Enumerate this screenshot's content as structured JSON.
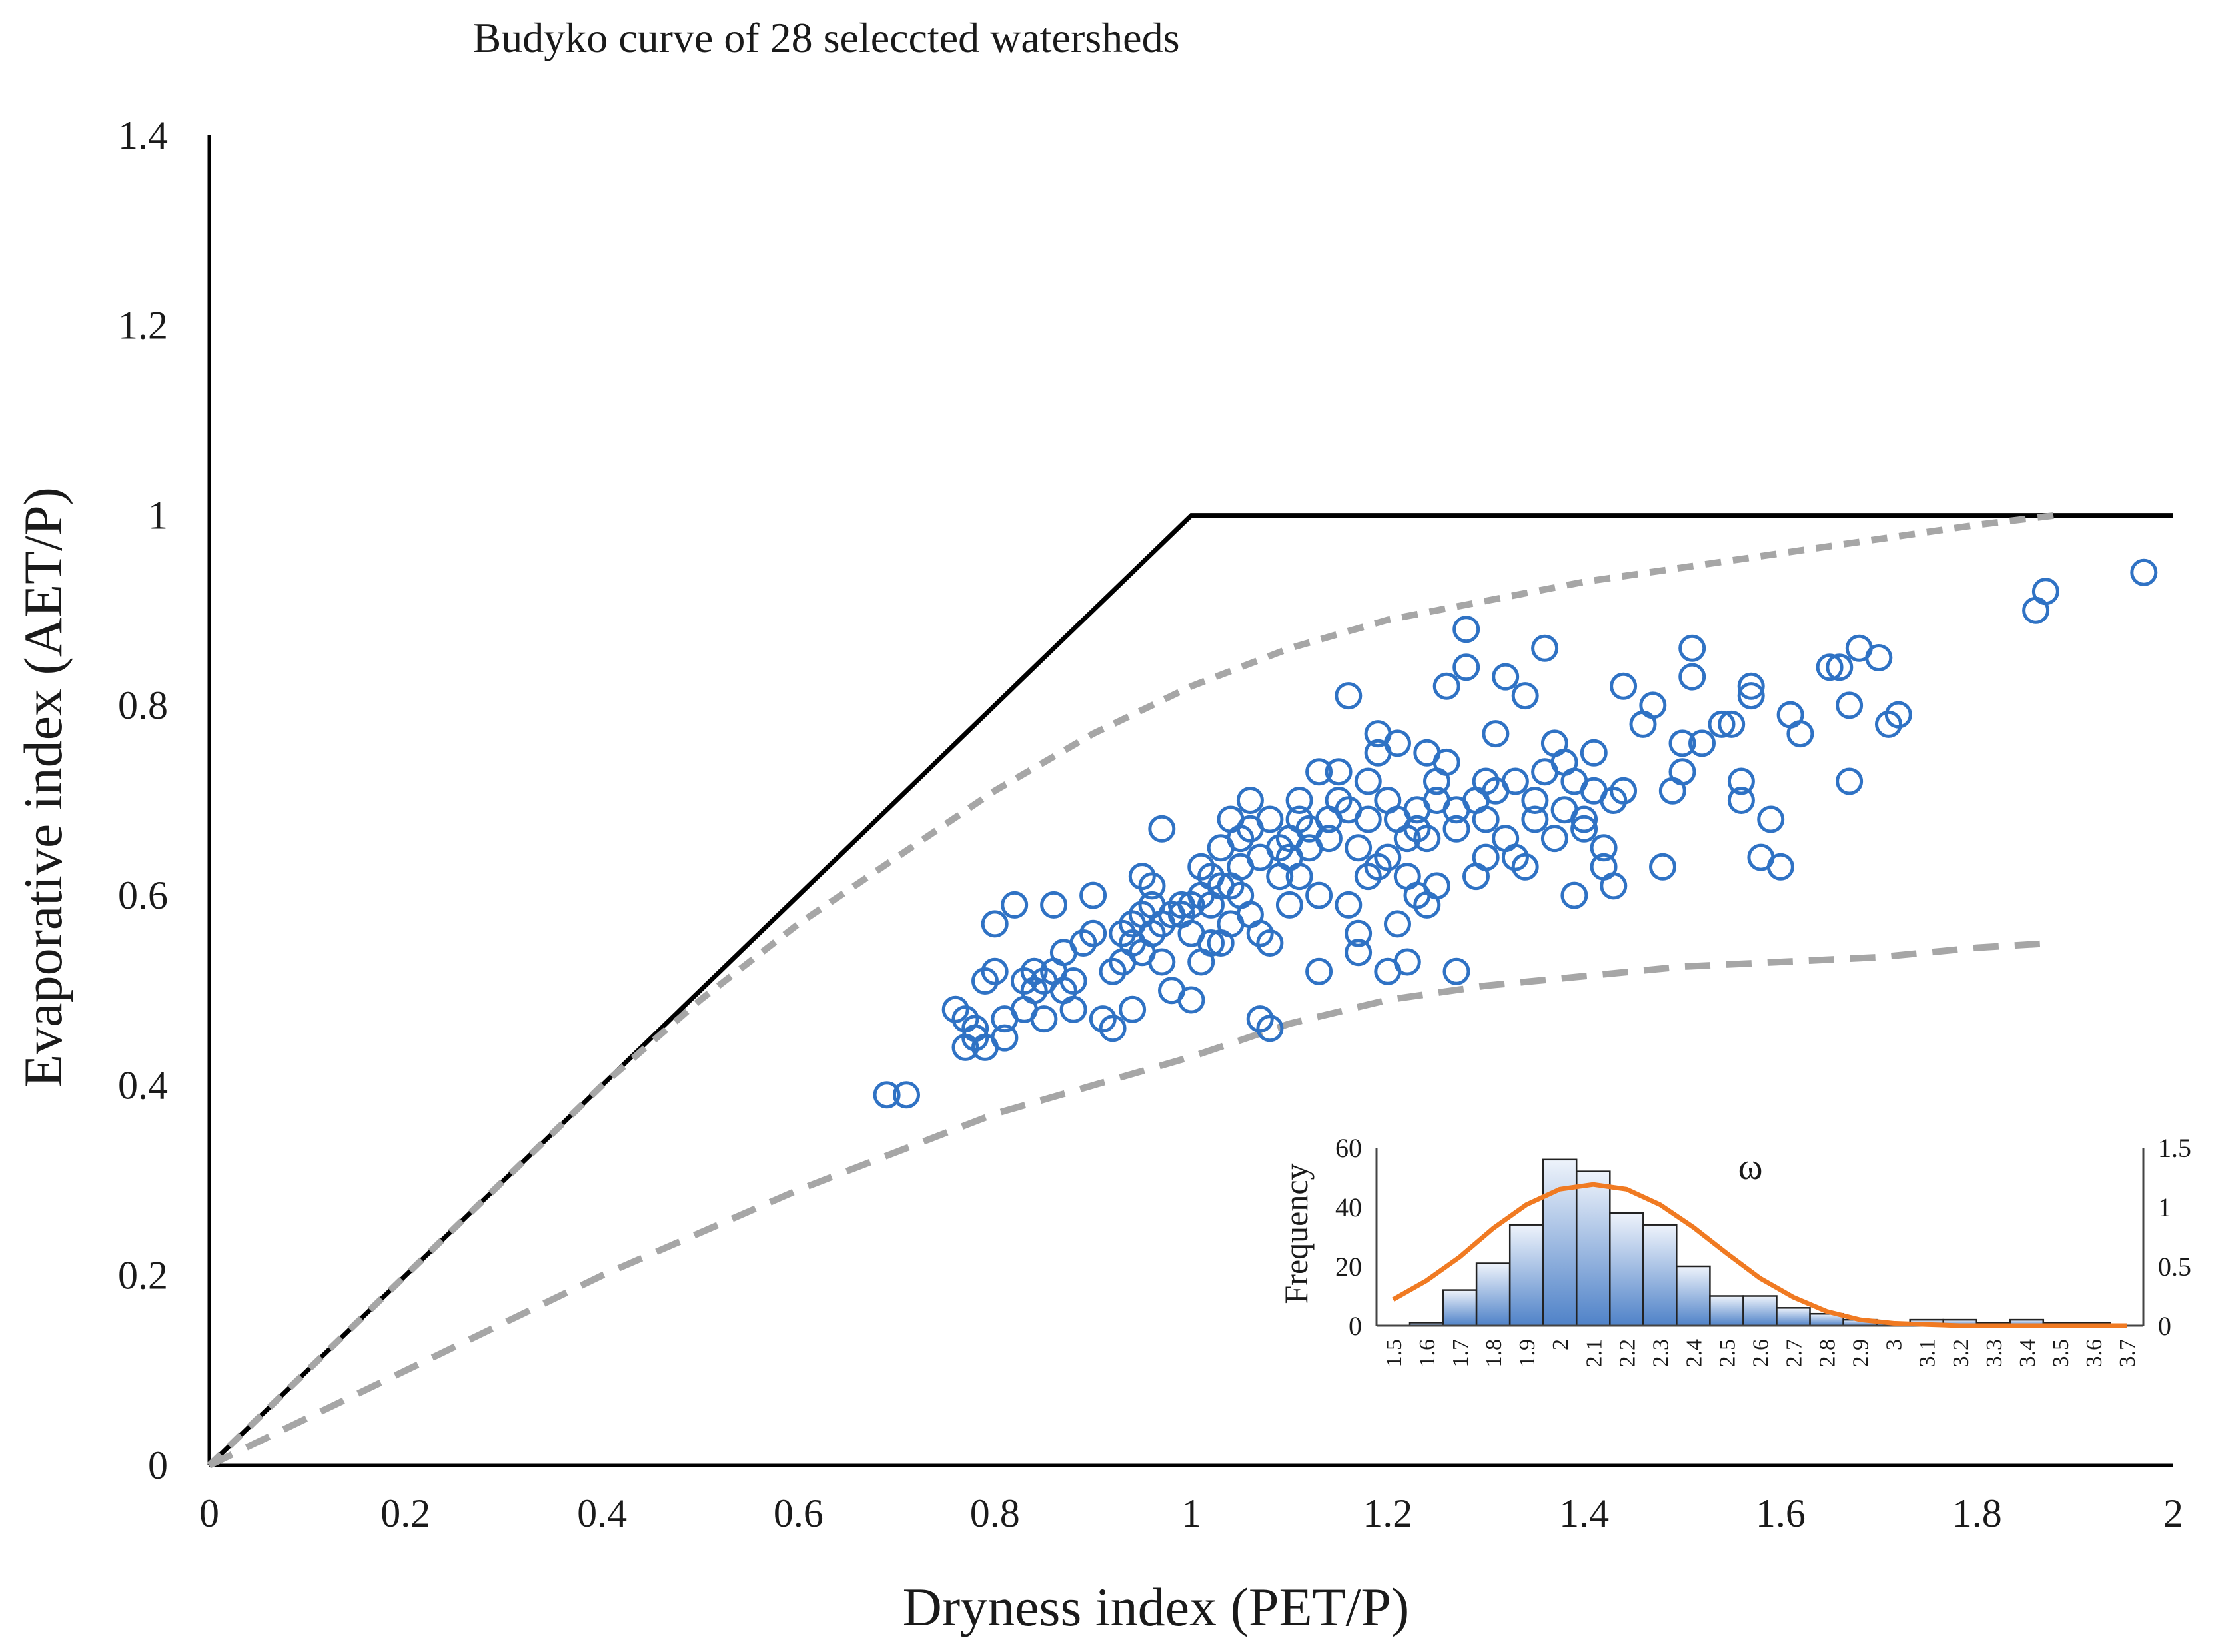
{
  "chart_data": [
    {
      "type": "scatter",
      "title": "Budyko curve of 28 seleccted watersheds",
      "xlabel": "Dryness index (PET/P)",
      "ylabel": "Evaporative index (AET/P)",
      "xlim": [
        0,
        2
      ],
      "ylim": [
        0,
        1.4
      ],
      "xticks": [
        "0",
        "0.2",
        "0.4",
        "0.6",
        "0.8",
        "1",
        "1.2",
        "1.4",
        "1.6",
        "1.8",
        "2"
      ],
      "yticks": [
        "0",
        "0.2",
        "0.4",
        "0.6",
        "0.8",
        "1",
        "1.2",
        "1.4"
      ],
      "grid": false,
      "legend": "none",
      "colors": {
        "points": "#2f72c4",
        "limit": "#000000",
        "curve": "#a6a6a6"
      },
      "limit_line": {
        "x": [
          0,
          1,
          2
        ],
        "y": [
          0,
          1,
          1
        ]
      },
      "curves": [
        {
          "name": "upper budyko curve",
          "x": [
            0,
            0.1,
            0.2,
            0.3,
            0.4,
            0.5,
            0.6,
            0.7,
            0.8,
            0.9,
            1.0,
            1.1,
            1.2,
            1.3,
            1.4,
            1.5,
            1.6,
            1.7,
            1.8,
            1.88
          ],
          "y": [
            0,
            0.1,
            0.2,
            0.3,
            0.4,
            0.49,
            0.57,
            0.64,
            0.71,
            0.77,
            0.82,
            0.86,
            0.89,
            0.91,
            0.93,
            0.945,
            0.96,
            0.975,
            0.99,
            1.0
          ]
        },
        {
          "name": "lower budyko curve",
          "x": [
            0,
            0.1,
            0.2,
            0.3,
            0.4,
            0.5,
            0.6,
            0.7,
            0.8,
            0.9,
            1.0,
            1.1,
            1.2,
            1.3,
            1.4,
            1.5,
            1.6,
            1.7,
            1.8,
            1.88
          ],
          "y": [
            0,
            0.05,
            0.1,
            0.15,
            0.2,
            0.245,
            0.29,
            0.33,
            0.37,
            0.4,
            0.43,
            0.465,
            0.49,
            0.505,
            0.515,
            0.525,
            0.53,
            0.535,
            0.545,
            0.55
          ]
        }
      ],
      "points": [
        [
          0.69,
          0.39
        ],
        [
          0.71,
          0.39
        ],
        [
          0.76,
          0.48
        ],
        [
          0.77,
          0.47
        ],
        [
          0.77,
          0.44
        ],
        [
          0.78,
          0.45
        ],
        [
          0.78,
          0.46
        ],
        [
          0.79,
          0.44
        ],
        [
          0.79,
          0.51
        ],
        [
          0.8,
          0.52
        ],
        [
          0.81,
          0.45
        ],
        [
          0.81,
          0.47
        ],
        [
          0.8,
          0.57
        ],
        [
          0.83,
          0.48
        ],
        [
          0.83,
          0.51
        ],
        [
          0.84,
          0.52
        ],
        [
          0.84,
          0.5
        ],
        [
          0.85,
          0.51
        ],
        [
          0.85,
          0.47
        ],
        [
          0.86,
          0.52
        ],
        [
          0.87,
          0.5
        ],
        [
          0.87,
          0.54
        ],
        [
          0.88,
          0.51
        ],
        [
          0.88,
          0.48
        ],
        [
          0.82,
          0.59
        ],
        [
          0.86,
          0.59
        ],
        [
          0.89,
          0.55
        ],
        [
          0.9,
          0.56
        ],
        [
          0.9,
          0.6
        ],
        [
          0.91,
          0.47
        ],
        [
          0.92,
          0.46
        ],
        [
          0.92,
          0.52
        ],
        [
          0.93,
          0.53
        ],
        [
          0.93,
          0.56
        ],
        [
          0.94,
          0.48
        ],
        [
          0.94,
          0.55
        ],
        [
          0.94,
          0.57
        ],
        [
          0.95,
          0.58
        ],
        [
          0.95,
          0.62
        ],
        [
          0.95,
          0.54
        ],
        [
          0.96,
          0.56
        ],
        [
          0.96,
          0.59
        ],
        [
          0.96,
          0.61
        ],
        [
          0.97,
          0.57
        ],
        [
          0.97,
          0.53
        ],
        [
          0.98,
          0.5
        ],
        [
          0.98,
          0.58
        ],
        [
          0.99,
          0.58
        ],
        [
          0.99,
          0.59
        ],
        [
          0.97,
          0.67
        ],
        [
          1.0,
          0.49
        ],
        [
          1.0,
          0.56
        ],
        [
          1.0,
          0.59
        ],
        [
          1.01,
          0.6
        ],
        [
          1.01,
          0.53
        ],
        [
          1.01,
          0.63
        ],
        [
          1.02,
          0.55
        ],
        [
          1.02,
          0.59
        ],
        [
          1.02,
          0.62
        ],
        [
          1.03,
          0.55
        ],
        [
          1.03,
          0.61
        ],
        [
          1.03,
          0.65
        ],
        [
          1.04,
          0.61
        ],
        [
          1.04,
          0.68
        ],
        [
          1.04,
          0.57
        ],
        [
          1.05,
          0.63
        ],
        [
          1.05,
          0.66
        ],
        [
          1.05,
          0.6
        ],
        [
          1.06,
          0.67
        ],
        [
          1.06,
          0.7
        ],
        [
          1.06,
          0.58
        ],
        [
          1.07,
          0.56
        ],
        [
          1.07,
          0.64
        ],
        [
          1.07,
          0.47
        ],
        [
          1.08,
          0.46
        ],
        [
          1.08,
          0.68
        ],
        [
          1.08,
          0.55
        ],
        [
          1.09,
          0.62
        ],
        [
          1.09,
          0.65
        ],
        [
          1.1,
          0.64
        ],
        [
          1.1,
          0.66
        ],
        [
          1.1,
          0.59
        ],
        [
          1.11,
          0.62
        ],
        [
          1.11,
          0.68
        ],
        [
          1.11,
          0.7
        ],
        [
          1.12,
          0.65
        ],
        [
          1.12,
          0.67
        ],
        [
          1.13,
          0.6
        ],
        [
          1.13,
          0.73
        ],
        [
          1.13,
          0.52
        ],
        [
          1.14,
          0.68
        ],
        [
          1.14,
          0.66
        ],
        [
          1.15,
          0.7
        ],
        [
          1.15,
          0.73
        ],
        [
          1.16,
          0.69
        ],
        [
          1.16,
          0.81
        ],
        [
          1.16,
          0.59
        ],
        [
          1.17,
          0.56
        ],
        [
          1.17,
          0.54
        ],
        [
          1.17,
          0.65
        ],
        [
          1.18,
          0.68
        ],
        [
          1.18,
          0.62
        ],
        [
          1.18,
          0.72
        ],
        [
          1.19,
          0.77
        ],
        [
          1.19,
          0.75
        ],
        [
          1.19,
          0.63
        ],
        [
          1.2,
          0.64
        ],
        [
          1.2,
          0.7
        ],
        [
          1.2,
          0.52
        ],
        [
          1.21,
          0.76
        ],
        [
          1.21,
          0.68
        ],
        [
          1.21,
          0.57
        ],
        [
          1.22,
          0.66
        ],
        [
          1.22,
          0.62
        ],
        [
          1.22,
          0.53
        ],
        [
          1.23,
          0.69
        ],
        [
          1.23,
          0.6
        ],
        [
          1.23,
          0.67
        ],
        [
          1.24,
          0.75
        ],
        [
          1.24,
          0.66
        ],
        [
          1.24,
          0.59
        ],
        [
          1.25,
          0.7
        ],
        [
          1.25,
          0.61
        ],
        [
          1.25,
          0.72
        ],
        [
          1.26,
          0.74
        ],
        [
          1.26,
          0.82
        ],
        [
          1.27,
          0.52
        ],
        [
          1.27,
          0.69
        ],
        [
          1.27,
          0.67
        ],
        [
          1.28,
          0.88
        ],
        [
          1.28,
          0.84
        ],
        [
          1.29,
          0.62
        ],
        [
          1.29,
          0.7
        ],
        [
          1.3,
          0.72
        ],
        [
          1.3,
          0.64
        ],
        [
          1.3,
          0.68
        ],
        [
          1.31,
          0.71
        ],
        [
          1.31,
          0.77
        ],
        [
          1.32,
          0.83
        ],
        [
          1.32,
          0.66
        ],
        [
          1.33,
          0.72
        ],
        [
          1.33,
          0.64
        ],
        [
          1.34,
          0.81
        ],
        [
          1.34,
          0.63
        ],
        [
          1.35,
          0.7
        ],
        [
          1.35,
          0.68
        ],
        [
          1.36,
          0.73
        ],
        [
          1.36,
          0.86
        ],
        [
          1.37,
          0.66
        ],
        [
          1.37,
          0.76
        ],
        [
          1.38,
          0.69
        ],
        [
          1.38,
          0.74
        ],
        [
          1.39,
          0.72
        ],
        [
          1.39,
          0.6
        ],
        [
          1.4,
          0.67
        ],
        [
          1.4,
          0.68
        ],
        [
          1.41,
          0.71
        ],
        [
          1.41,
          0.75
        ],
        [
          1.42,
          0.65
        ],
        [
          1.42,
          0.63
        ],
        [
          1.43,
          0.7
        ],
        [
          1.43,
          0.61
        ],
        [
          1.44,
          0.82
        ],
        [
          1.44,
          0.71
        ],
        [
          1.46,
          0.78
        ],
        [
          1.47,
          0.8
        ],
        [
          1.48,
          0.63
        ],
        [
          1.49,
          0.71
        ],
        [
          1.5,
          0.73
        ],
        [
          1.5,
          0.76
        ],
        [
          1.51,
          0.86
        ],
        [
          1.51,
          0.83
        ],
        [
          1.52,
          0.76
        ],
        [
          1.54,
          0.78
        ],
        [
          1.55,
          0.78
        ],
        [
          1.56,
          0.72
        ],
        [
          1.56,
          0.7
        ],
        [
          1.57,
          0.82
        ],
        [
          1.57,
          0.81
        ],
        [
          1.58,
          0.64
        ],
        [
          1.59,
          0.68
        ],
        [
          1.6,
          0.63
        ],
        [
          1.61,
          0.79
        ],
        [
          1.62,
          0.77
        ],
        [
          1.65,
          0.84
        ],
        [
          1.66,
          0.84
        ],
        [
          1.67,
          0.72
        ],
        [
          1.67,
          0.8
        ],
        [
          1.68,
          0.86
        ],
        [
          1.7,
          0.85
        ],
        [
          1.71,
          0.78
        ],
        [
          1.72,
          0.79
        ],
        [
          1.86,
          0.9
        ],
        [
          1.87,
          0.92
        ],
        [
          1.97,
          0.94
        ]
      ]
    },
    {
      "type": "bar",
      "title": "ω",
      "xlabel": "",
      "ylabel": "Frequency",
      "ylim": [
        0,
        60
      ],
      "y2lim": [
        0,
        1.5
      ],
      "yticks": [
        "0",
        "20",
        "40",
        "60"
      ],
      "y2ticks": [
        "0",
        "0.5",
        "1",
        "1.5"
      ],
      "categories": [
        "1.5",
        "1.6",
        "1.7",
        "1.8",
        "1.9",
        "2",
        "2.1",
        "2.2",
        "2.3",
        "2.4",
        "2.5",
        "2.6",
        "2.7",
        "2.8",
        "2.9",
        "3",
        "3.1",
        "3.2",
        "3.3",
        "3.4",
        "3.5",
        "3.6",
        "3.7"
      ],
      "values": [
        0,
        1,
        12,
        21,
        34,
        56,
        52,
        38,
        34,
        20,
        10,
        10,
        6,
        4,
        2,
        1,
        2,
        2,
        1,
        2,
        1,
        1,
        0
      ],
      "colors": {
        "bar_top": "#eef3fb",
        "bar_bottom": "#4f82c8",
        "edge": "#222222",
        "curve": "#f07a22"
      },
      "density_curve": {
        "name": "normal fit",
        "x": [
          1.5,
          1.6,
          1.7,
          1.8,
          1.9,
          2.0,
          2.1,
          2.2,
          2.3,
          2.4,
          2.5,
          2.6,
          2.7,
          2.8,
          2.9,
          3.0,
          3.1,
          3.2,
          3.3,
          3.4,
          3.5,
          3.6,
          3.7
        ],
        "y": [
          0.22,
          0.38,
          0.58,
          0.82,
          1.02,
          1.15,
          1.19,
          1.15,
          1.02,
          0.83,
          0.61,
          0.4,
          0.24,
          0.12,
          0.05,
          0.02,
          0.01,
          0.0,
          0.0,
          0.0,
          0.0,
          0.0,
          0.0
        ]
      }
    }
  ]
}
